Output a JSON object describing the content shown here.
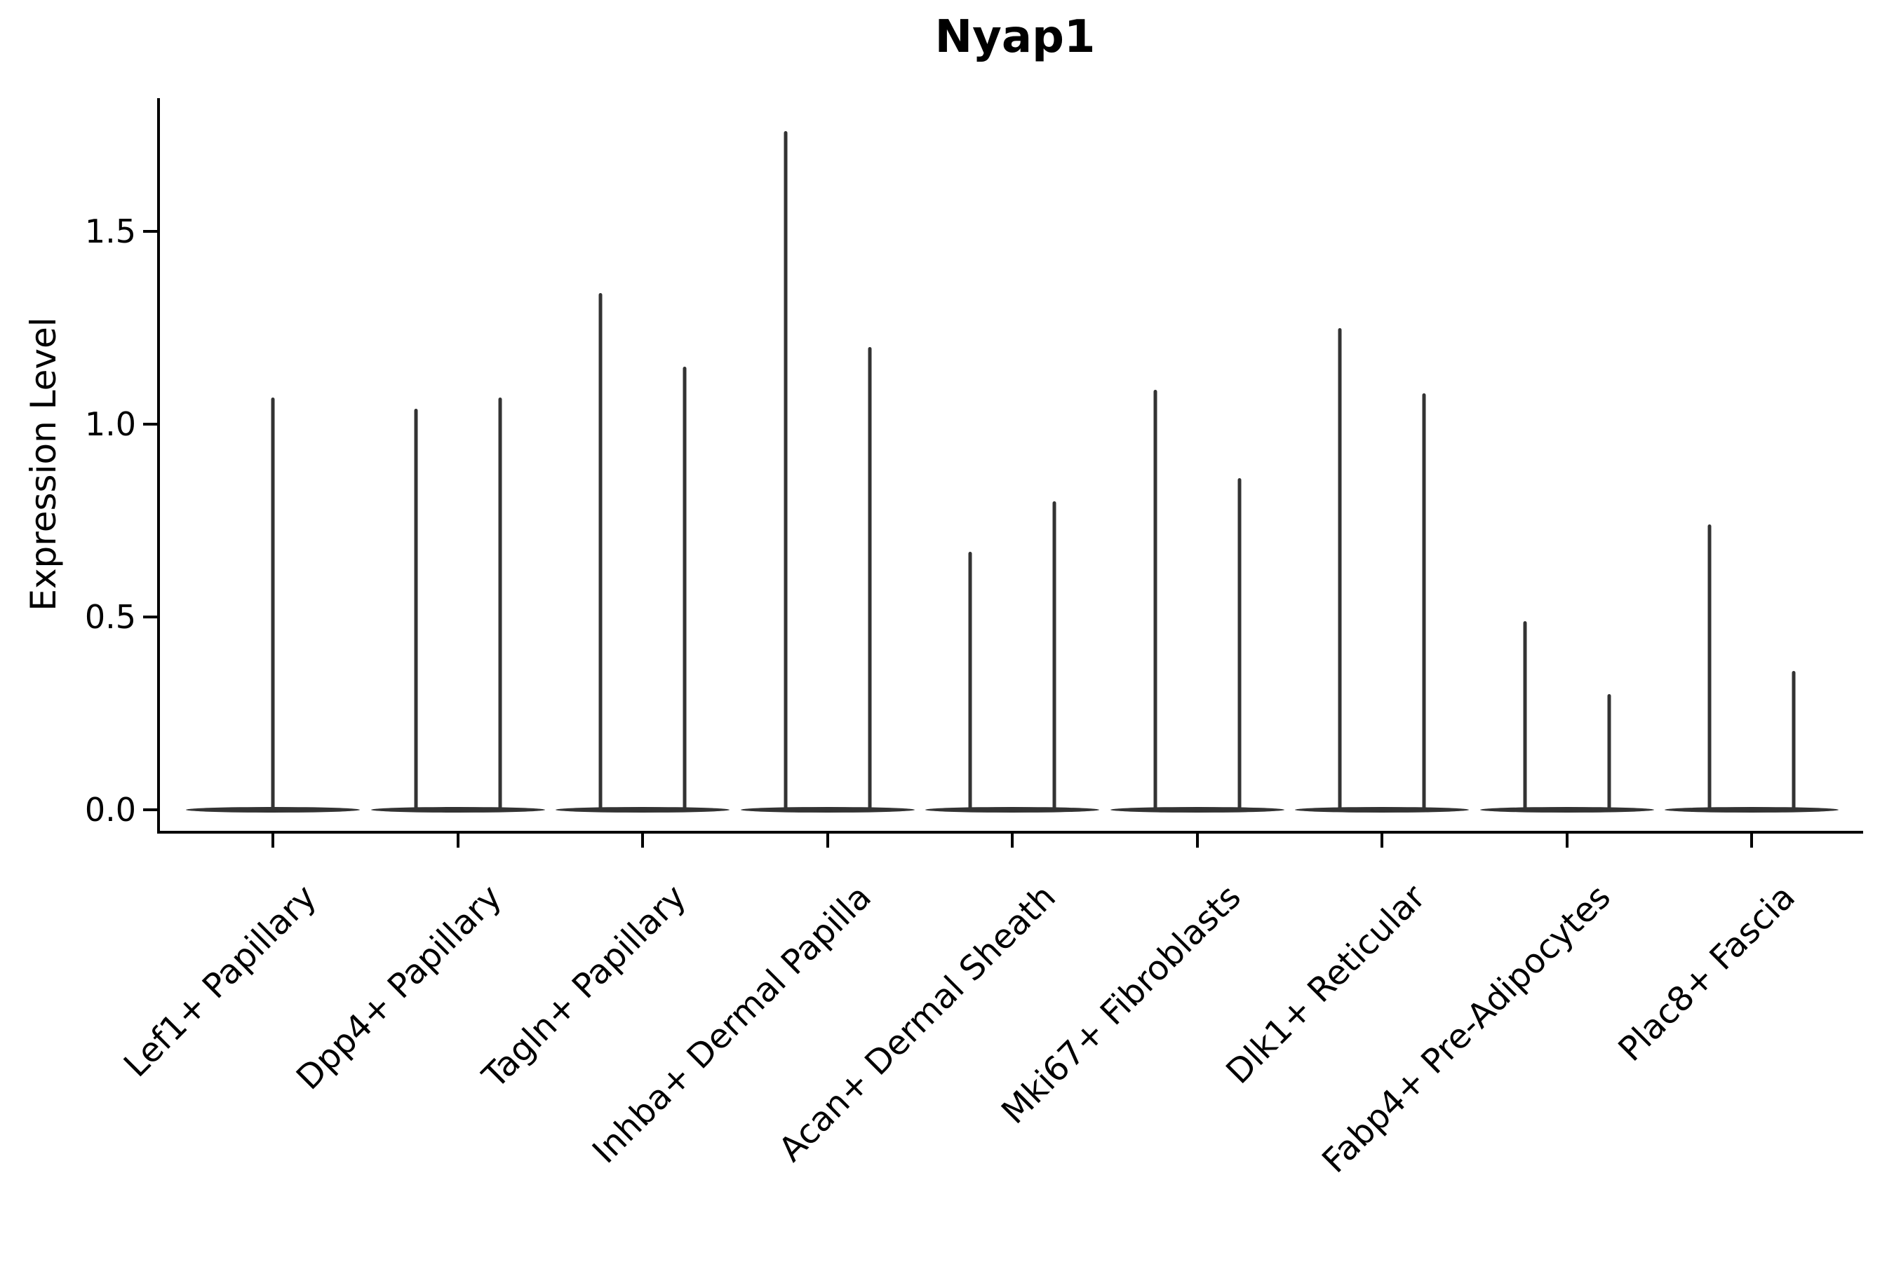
{
  "figure": {
    "background": "#ffffff"
  },
  "chart_data": {
    "type": "violin",
    "title": "Nyap1",
    "ylabel": "Expression Level",
    "xlabel": "",
    "ylim": [
      -0.05,
      1.85
    ],
    "grid": false,
    "legend": null,
    "yticks": [
      {
        "label": "0.0",
        "value": 0.0
      },
      {
        "label": "0.5",
        "value": 0.5
      },
      {
        "label": "1.0",
        "value": 1.0
      },
      {
        "label": "1.5",
        "value": 1.5
      }
    ],
    "violins": [
      {
        "category": "Lef1+ Papillary",
        "baseline_value": 0.0,
        "spike_values": [
          1.07
        ]
      },
      {
        "category": "Dpp4+ Papillary",
        "baseline_value": 0.0,
        "spike_values": [
          1.04,
          1.07
        ]
      },
      {
        "category": "Tagln+ Papillary",
        "baseline_value": 0.0,
        "spike_values": [
          1.34,
          1.15
        ]
      },
      {
        "category": "Inhba+ Dermal Papilla",
        "baseline_value": 0.0,
        "spike_values": [
          1.76,
          1.2
        ]
      },
      {
        "category": "Acan+ Dermal Sheath",
        "baseline_value": 0.0,
        "spike_values": [
          0.67,
          0.8
        ]
      },
      {
        "category": "Mki67+ Fibroblasts",
        "baseline_value": 0.0,
        "spike_values": [
          1.09,
          0.86
        ]
      },
      {
        "category": "Dlk1+ Reticular",
        "baseline_value": 0.0,
        "spike_values": [
          1.25,
          1.08
        ]
      },
      {
        "category": "Fabp4+ Pre-Adipocytes",
        "baseline_value": 0.0,
        "spike_values": [
          0.49,
          0.3
        ]
      },
      {
        "category": "Plac8+ Fascia",
        "baseline_value": 0.0,
        "spike_values": [
          0.74,
          0.36
        ]
      }
    ],
    "colors": {
      "violin": "#333333",
      "axis": "#000000",
      "text": "#000000"
    }
  }
}
